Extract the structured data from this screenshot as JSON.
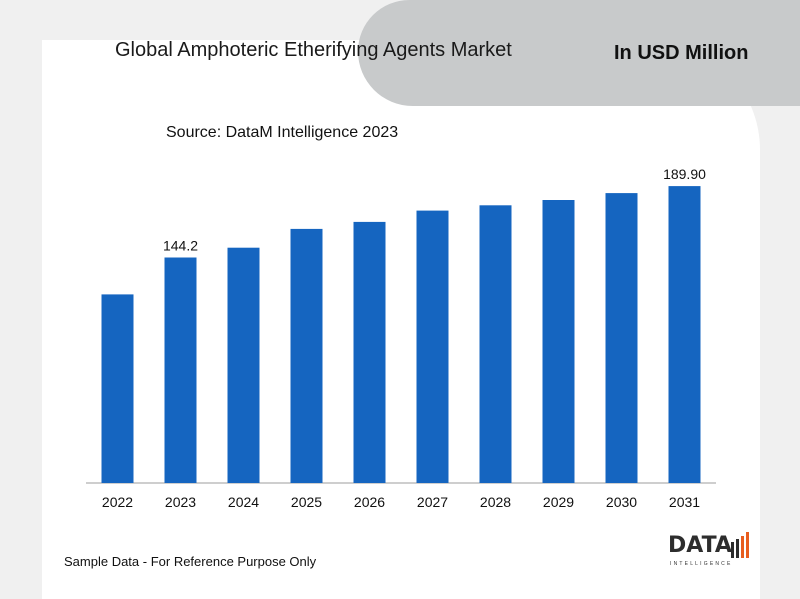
{
  "header": {
    "title": "Global Amphoteric Etherifying Agents Market",
    "unit": "In USD Million",
    "source": "Source: DataM Intelligence 2023"
  },
  "footer": {
    "note": "Sample Data - For Reference Purpose Only"
  },
  "logo": {
    "word": "DATA",
    "sub": "INTELLIGENCE"
  },
  "colors": {
    "bar": "#1565c0",
    "axis": "#9e9e9e",
    "header_shape": "#c8cacb"
  },
  "chart_data": {
    "type": "bar",
    "title": "Global Amphoteric Etherifying Agents Market",
    "xlabel": "",
    "ylabel": "",
    "categories": [
      "2022",
      "2023",
      "2024",
      "2025",
      "2026",
      "2027",
      "2028",
      "2029",
      "2030",
      "2031"
    ],
    "values": [
      120.6,
      144.2,
      150.5,
      162.5,
      167.0,
      174.2,
      177.6,
      181.0,
      185.4,
      189.9
    ],
    "data_labels": [
      "",
      "144.2",
      "",
      "",
      "",
      "",
      "",
      "",
      "",
      "189.90"
    ],
    "ylim": [
      0,
      208.5
    ],
    "grid": false,
    "legend": "none"
  }
}
